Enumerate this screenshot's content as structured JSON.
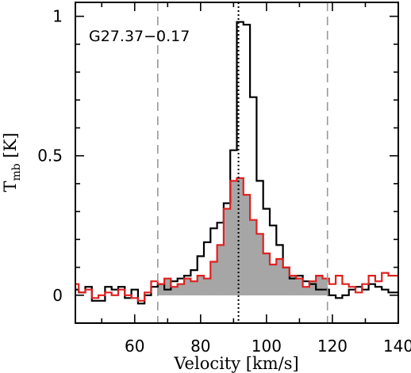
{
  "chart_data": {
    "type": "line",
    "title": "",
    "annotation": "G27.37−0.17",
    "xlabel": "Velocity [km/s]",
    "ylabel_main": "T",
    "ylabel_sub": "mb",
    "ylabel_unit": " [K]",
    "xlim": [
      42,
      140
    ],
    "ylim": [
      -0.1,
      1.05
    ],
    "xticks": [
      60,
      80,
      100,
      120,
      140
    ],
    "yticks": [
      0,
      0.5,
      1
    ],
    "ytick_labels": [
      "0",
      "0.5",
      "1"
    ],
    "grid": false,
    "vlines": [
      {
        "x": 67,
        "style": "dashed",
        "color": "#999999"
      },
      {
        "x": 118.5,
        "style": "dashed",
        "color": "#999999"
      },
      {
        "x": 91.5,
        "style": "dotted",
        "color": "#000000"
      }
    ],
    "series": [
      {
        "color": "#000000",
        "style": "step",
        "x": [
          42,
          44,
          46,
          48,
          50,
          52,
          54,
          56,
          58,
          60,
          62,
          64,
          66,
          68,
          70,
          72,
          74,
          76,
          78,
          80,
          82,
          84,
          86,
          88,
          90,
          92,
          94,
          96,
          98,
          100,
          102,
          104,
          106,
          108,
          110,
          112,
          114,
          116,
          118,
          120,
          122,
          124,
          126,
          128,
          130,
          132,
          134,
          136,
          138,
          140
        ],
        "y": [
          0.02,
          0.01,
          0.03,
          -0.02,
          -0.02,
          0.03,
          0.02,
          0.03,
          -0.01,
          0.02,
          -0.03,
          0.0,
          0.03,
          0.04,
          0.02,
          0.05,
          0.06,
          0.07,
          0.09,
          0.14,
          0.19,
          0.24,
          0.26,
          0.33,
          0.52,
          0.98,
          0.97,
          0.71,
          0.41,
          0.31,
          0.25,
          0.18,
          0.1,
          0.06,
          0.07,
          0.05,
          0.04,
          0.02,
          0.02,
          0.0,
          -0.01,
          0.0,
          0.02,
          0.03,
          0.02,
          0.04,
          0.03,
          0.02,
          0.01,
          0.01
        ]
      },
      {
        "color": "#e02020",
        "style": "step",
        "fill": "#a6a6a6",
        "fill_range": [
          67,
          118.5
        ],
        "x": [
          42,
          44,
          46,
          48,
          50,
          52,
          54,
          56,
          58,
          60,
          62,
          64,
          66,
          68,
          70,
          72,
          74,
          76,
          78,
          80,
          82,
          84,
          86,
          88,
          90,
          92,
          94,
          96,
          98,
          100,
          102,
          104,
          106,
          108,
          110,
          112,
          114,
          116,
          118,
          120,
          122,
          124,
          126,
          128,
          130,
          132,
          134,
          136,
          138,
          140
        ],
        "y": [
          0.04,
          0.01,
          0.02,
          -0.01,
          0.0,
          0.01,
          0.0,
          0.02,
          0.0,
          -0.01,
          -0.02,
          0.01,
          0.05,
          0.04,
          0.06,
          0.03,
          0.04,
          0.06,
          0.05,
          0.07,
          0.06,
          0.12,
          0.18,
          0.31,
          0.41,
          0.42,
          0.36,
          0.27,
          0.22,
          0.15,
          0.11,
          0.13,
          0.1,
          0.07,
          0.06,
          0.03,
          0.05,
          0.07,
          0.06,
          0.04,
          0.07,
          0.04,
          0.03,
          0.01,
          0.04,
          0.07,
          0.05,
          0.08,
          0.07,
          0.07
        ]
      }
    ]
  }
}
